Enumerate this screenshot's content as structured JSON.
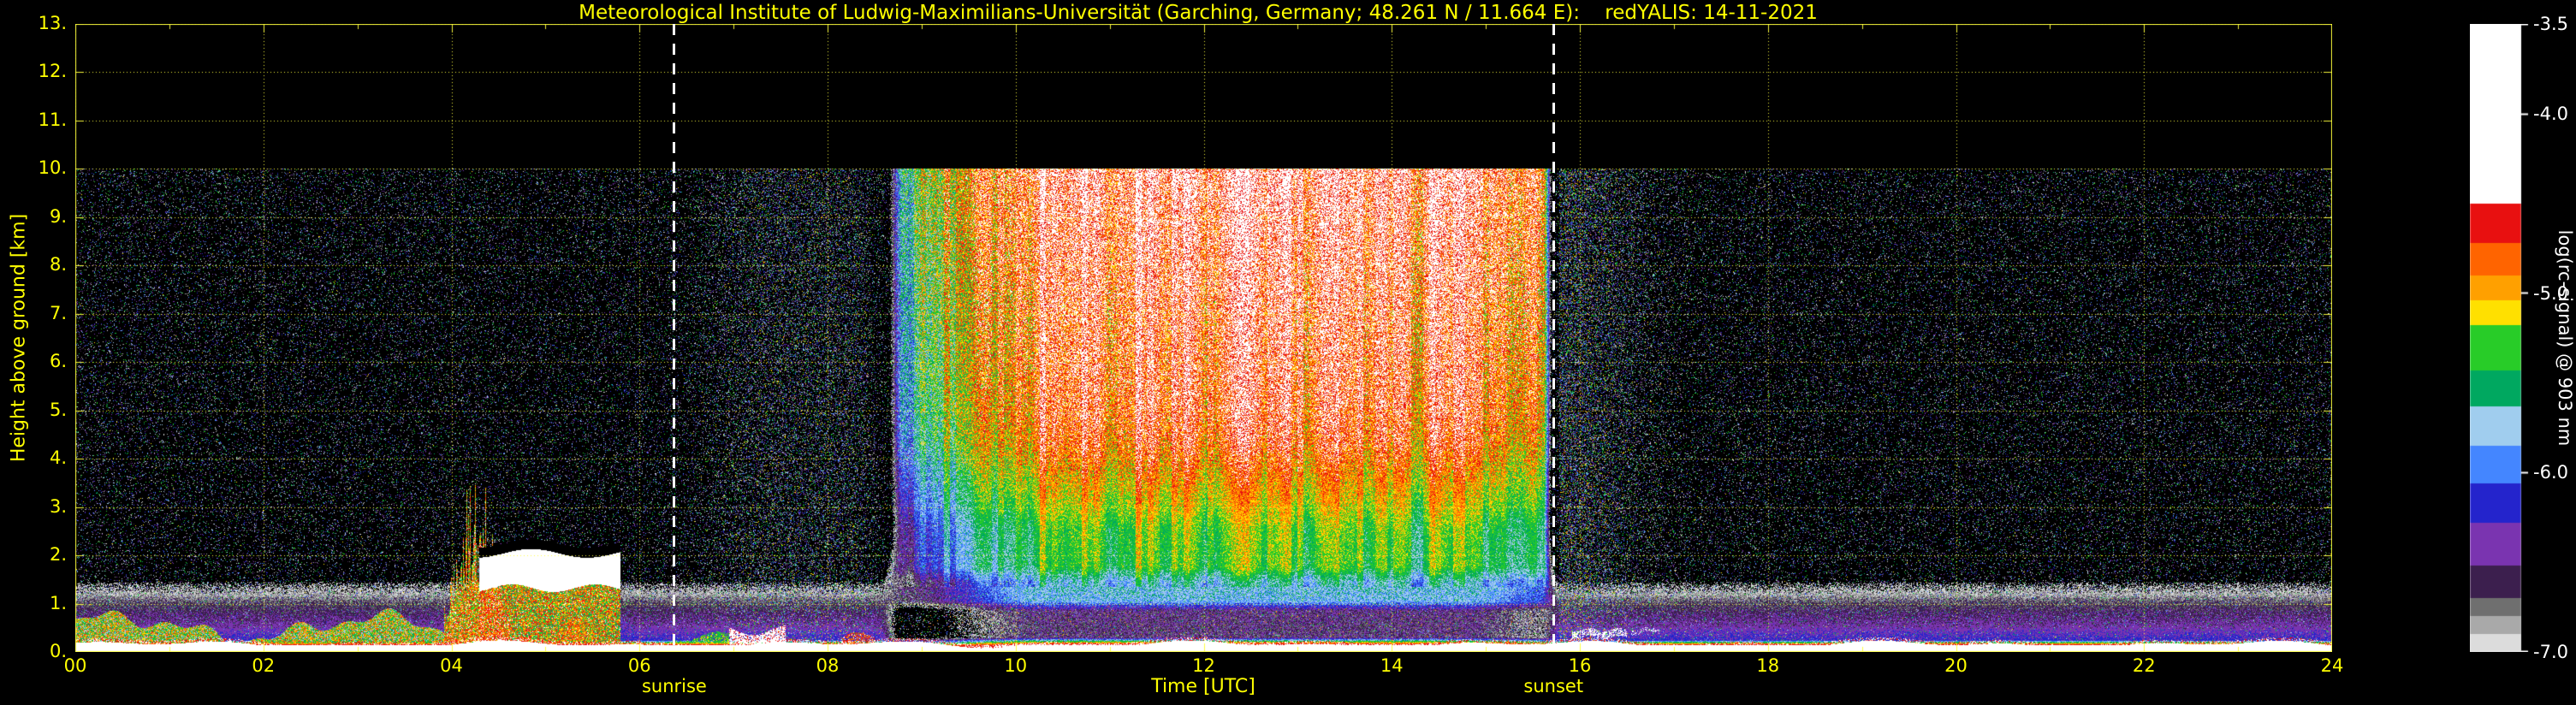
{
  "chart_data": {
    "type": "heatmap",
    "title": "Meteorological Institute of Ludwig-Maximilians-Universität (Garching, Germany; 48.261 N / 11.664 E):    redYALIS: 14-11-2021",
    "xlabel": "Time [UTC]",
    "ylabel": "Height above ground [km]",
    "colorbar_label": "log(rc-signal) @ 903 nm",
    "x_range": [
      0,
      24
    ],
    "y_range": [
      0,
      13
    ],
    "x_ticks": [
      {
        "v": 0,
        "label": "00"
      },
      {
        "v": 2,
        "label": "02"
      },
      {
        "v": 4,
        "label": "04"
      },
      {
        "v": 6,
        "label": "06"
      },
      {
        "v": 8,
        "label": "08"
      },
      {
        "v": 10,
        "label": "10"
      },
      {
        "v": 12,
        "label": "12"
      },
      {
        "v": 14,
        "label": "14"
      },
      {
        "v": 16,
        "label": "16"
      },
      {
        "v": 18,
        "label": "18"
      },
      {
        "v": 20,
        "label": "20"
      },
      {
        "v": 22,
        "label": "22"
      },
      {
        "v": 24,
        "label": "24"
      }
    ],
    "y_ticks": [
      {
        "v": 0,
        "label": "0."
      },
      {
        "v": 1,
        "label": "1."
      },
      {
        "v": 2,
        "label": "2."
      },
      {
        "v": 3,
        "label": "3."
      },
      {
        "v": 4,
        "label": "4."
      },
      {
        "v": 5,
        "label": "5."
      },
      {
        "v": 6,
        "label": "6."
      },
      {
        "v": 7,
        "label": "7."
      },
      {
        "v": 8,
        "label": "8."
      },
      {
        "v": 9,
        "label": "9."
      },
      {
        "v": 10,
        "label": "10."
      },
      {
        "v": 11,
        "label": "11."
      },
      {
        "v": 12,
        "label": "12."
      },
      {
        "v": 13,
        "label": "13."
      }
    ],
    "colorbar": {
      "range": [
        -3.5,
        -7.0
      ],
      "ticks": [
        {
          "v": -3.5,
          "label": "-3.5"
        },
        {
          "v": -4.0,
          "label": "-4.0"
        },
        {
          "v": -5.0,
          "label": "-5.0"
        },
        {
          "v": -6.0,
          "label": "-6.0"
        },
        {
          "v": -7.0,
          "label": "-7.0"
        }
      ]
    },
    "sun": {
      "sunrise_utc": 6.37,
      "sunrise_label": "sunrise",
      "sunset_utc": 15.72,
      "sunset_label": "sunset"
    },
    "style": {
      "background": "#000000",
      "axis_text_color": "#ffff00",
      "grid_color": "rgba(255,255,60,0.95)",
      "colorbar_text_color": "#ffffff",
      "sunline_color": "#ffffff"
    },
    "colormap": [
      {
        "min": -4.5,
        "color": "#ffffff"
      },
      {
        "min": -4.72,
        "color": "#e81010"
      },
      {
        "min": -4.9,
        "color": "#ff6400"
      },
      {
        "min": -5.04,
        "color": "#ffa000"
      },
      {
        "min": -5.18,
        "color": "#ffe000"
      },
      {
        "min": -5.43,
        "color": "#28cc28"
      },
      {
        "min": -5.63,
        "color": "#00a860"
      },
      {
        "min": -5.85,
        "color": "#a0cdee"
      },
      {
        "min": -6.06,
        "color": "#4486ff"
      },
      {
        "min": -6.28,
        "color": "#2424cc"
      },
      {
        "min": -6.52,
        "color": "#7a34b0"
      },
      {
        "min": -6.7,
        "color": "#3c1f4e"
      },
      {
        "min": -6.8,
        "color": "#6f6f6f"
      },
      {
        "min": -6.9,
        "color": "#a9a9a9"
      },
      {
        "min": -7.0,
        "color": "#dcdcdc"
      }
    ],
    "below_color": "#000000",
    "render": {
      "seed": 1711,
      "data_top_km": 10,
      "day_window": [
        8.55,
        8.82,
        15.58,
        15.78
      ],
      "morning_shift": {
        "ramp": [
          8.7,
          10.3
        ],
        "amount": -0.9
      },
      "evening_shift": {
        "ramp": [
          14.8,
          15.7
        ],
        "amount": -0.3
      },
      "striation_amp": 0.22,
      "night_noise_amp": 0.14,
      "profiles": {
        "night": [
          [
            0,
            -3.95
          ],
          [
            0.13,
            -4.25
          ],
          [
            0.24,
            -6.22
          ],
          [
            0.55,
            -6.45
          ],
          [
            1.0,
            -6.68
          ],
          [
            1.4,
            -7.05
          ],
          [
            1.9,
            -7.8
          ],
          [
            2.6,
            -8.6
          ],
          [
            10,
            -8.6
          ]
        ],
        "day": [
          [
            0,
            -3.95
          ],
          [
            0.14,
            -4.25
          ],
          [
            0.3,
            -6.6
          ],
          [
            0.85,
            -6.55
          ],
          [
            1.05,
            -5.8
          ],
          [
            1.45,
            -5.7
          ],
          [
            1.75,
            -5.32
          ],
          [
            2.55,
            -5.26
          ],
          [
            3.05,
            -5.08
          ],
          [
            3.6,
            -4.93
          ],
          [
            4.3,
            -4.72
          ],
          [
            5.0,
            -4.63
          ],
          [
            7.0,
            -4.56
          ],
          [
            8.5,
            -4.47
          ],
          [
            10,
            -4.4
          ]
        ]
      },
      "day_noise_amp": [
        [
          0,
          0.22
        ],
        [
          2.8,
          0.22
        ],
        [
          4,
          0.38
        ],
        [
          7,
          0.5
        ],
        [
          10,
          0.5
        ]
      ],
      "speckle": {
        "base_p": 0.13,
        "twilight_boost_p": 0.32,
        "morning_shoulder": [
          6.3,
          7.5,
          8.3,
          8.6
        ],
        "evening_sigma": 0.75
      },
      "features": {
        "left_layer": {
          "fade": [
            5.25,
            5.95
          ],
          "base": -5.25
        },
        "cloud": {
          "spike_window": [
            3.92,
            4.62
          ],
          "layer_window": [
            4.3,
            5.8
          ],
          "white_base": 1.32,
          "white_top": 2.04,
          "cap_thickness": 0.2
        },
        "blobs": [
          {
            "t": [
              6.35,
              6.95
            ],
            "top": 0.32,
            "v": -5.3,
            "p": 0.7
          },
          {
            "t": [
              6.95,
              7.55
            ],
            "top": 0.45,
            "v": -4.35,
            "p": 0.85
          },
          {
            "t": [
              8.15,
              8.5
            ],
            "top": 0.3,
            "v": -4.7,
            "p": 0.6
          }
        ],
        "streaks": [
          {
            "t": [
              15.92,
              16.5
            ],
            "lo": 0.3,
            "hi": 0.46,
            "p": 0.55
          },
          {
            "t": [
              16.55,
              16.85
            ],
            "lo": 0.38,
            "hi": 0.48,
            "p": 0.3
          }
        ],
        "day_low_red_dots": {
          "h": [
            0.22,
            0.95
          ],
          "p": 0.012,
          "v": -4.9
        }
      }
    }
  }
}
